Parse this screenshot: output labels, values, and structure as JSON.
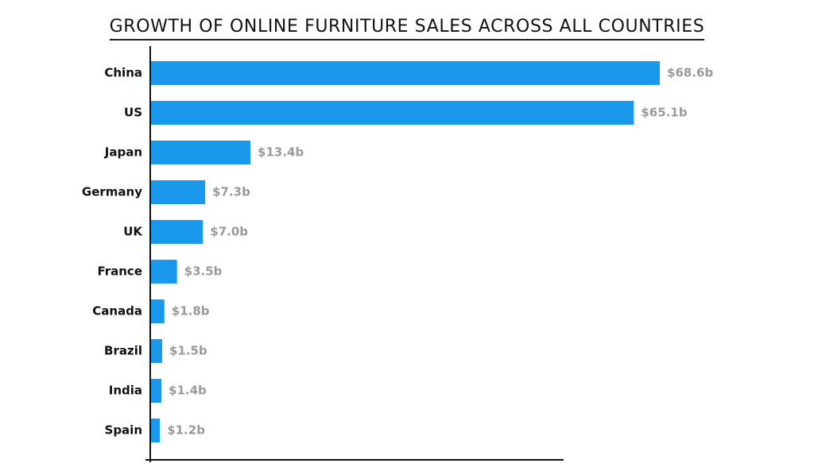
{
  "chart_data": {
    "type": "bar",
    "orientation": "horizontal",
    "title": "GROWTH OF ONLINE FURNITURE SALES ACROSS ALL COUNTRIES",
    "categories": [
      "China",
      "US",
      "Japan",
      "Germany",
      "UK",
      "France",
      "Canada",
      "Brazil",
      "India",
      "Spain"
    ],
    "values": [
      68.6,
      65.1,
      13.4,
      7.3,
      7.0,
      3.5,
      1.8,
      1.5,
      1.4,
      1.2
    ],
    "value_labels": [
      "$68.6b",
      "$65.1b",
      "$13.4b",
      "$7.3b",
      "$7.0b",
      "$3.5b",
      "$1.8b",
      "$1.5b",
      "$1.4b",
      "$1.2b"
    ],
    "unit": "billion USD",
    "bar_color": "#1a99ec",
    "value_label_color": "#9a9a9a",
    "grid": false,
    "legend": "none"
  }
}
